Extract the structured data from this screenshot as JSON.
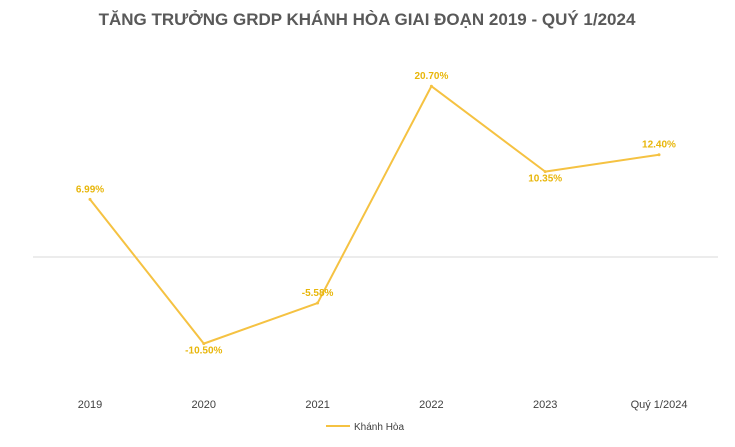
{
  "chart_data": {
    "type": "line",
    "title": "TĂNG TRƯỞNG GRDP KHÁNH HÒA GIAI ĐOẠN 2019 - QUÝ 1/2024",
    "categories": [
      "2019",
      "2020",
      "2021",
      "2022",
      "2023",
      "Quý 1/2024"
    ],
    "series": [
      {
        "name": "Khánh Hòa",
        "values": [
          6.99,
          -10.5,
          -5.58,
          20.7,
          10.35,
          12.4
        ],
        "labels": [
          "6.99%",
          "-10.50%",
          "-5.58%",
          "20.70%",
          "10.35%",
          "12.40%"
        ],
        "color": "#F5C242"
      }
    ],
    "ylim": [
      -15,
      25
    ],
    "grid": false,
    "zero_line": true,
    "legend_position": "bottom"
  }
}
